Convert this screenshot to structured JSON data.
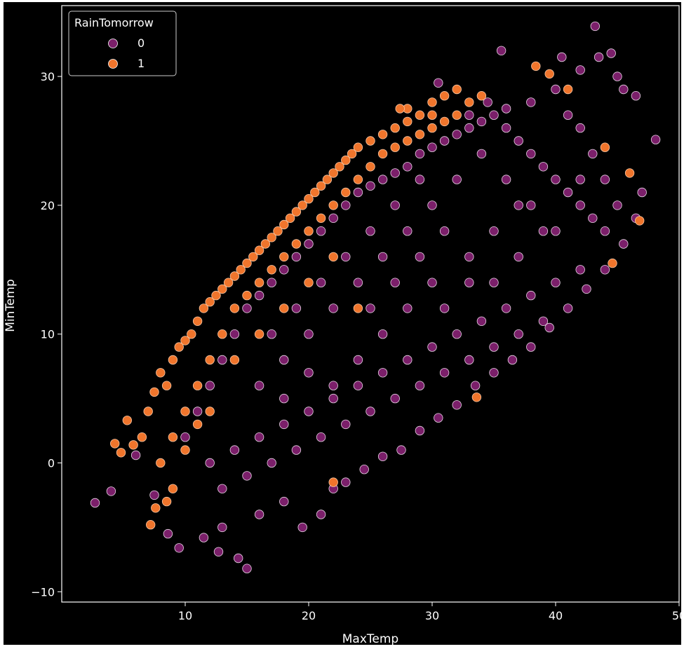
{
  "chart_data": {
    "type": "scatter",
    "xlabel": "MaxTemp",
    "ylabel": "MinTemp",
    "xlim": [
      0,
      50
    ],
    "ylim": [
      -10.8,
      35.5
    ],
    "xticks": [
      10,
      20,
      30,
      40,
      50
    ],
    "yticks": [
      -10,
      0,
      10,
      20,
      30
    ],
    "legend": {
      "title": "RainTomorrow",
      "position": "top-left",
      "entries": [
        {
          "label": "0",
          "color": "#7b1f6a"
        },
        {
          "label": "1",
          "color": "#f0752c"
        }
      ]
    },
    "series": [
      {
        "name": "0",
        "color": "#7b1f6a",
        "edge_color": "#e8d6e6",
        "points": [
          [
            2.7,
            -3.1
          ],
          [
            4.0,
            -2.2
          ],
          [
            6.0,
            0.6
          ],
          [
            7.5,
            -2.5
          ],
          [
            8.6,
            -5.5
          ],
          [
            9.5,
            -6.6
          ],
          [
            11.5,
            -5.8
          ],
          [
            12.7,
            -6.9
          ],
          [
            14.3,
            -7.4
          ],
          [
            15.0,
            -8.2
          ],
          [
            13.0,
            -5.0
          ],
          [
            16.0,
            -4.0
          ],
          [
            18.0,
            -3.0
          ],
          [
            19.5,
            -5.0
          ],
          [
            21.0,
            -4.0
          ],
          [
            22.0,
            -2.0
          ],
          [
            23.0,
            -1.5
          ],
          [
            24.5,
            -0.5
          ],
          [
            26.0,
            0.5
          ],
          [
            27.5,
            1.0
          ],
          [
            29.0,
            2.5
          ],
          [
            30.5,
            3.5
          ],
          [
            32.0,
            4.5
          ],
          [
            33.5,
            6.0
          ],
          [
            35.0,
            7.0
          ],
          [
            36.5,
            8.0
          ],
          [
            38.0,
            9.0
          ],
          [
            39.5,
            10.5
          ],
          [
            41.0,
            12.0
          ],
          [
            42.5,
            13.5
          ],
          [
            44.0,
            15.0
          ],
          [
            45.5,
            17.0
          ],
          [
            46.5,
            19.0
          ],
          [
            47.0,
            21.0
          ],
          [
            48.1,
            25.1
          ],
          [
            46.5,
            28.5
          ],
          [
            45.0,
            30.0
          ],
          [
            43.5,
            31.5
          ],
          [
            43.2,
            33.9
          ],
          [
            42.0,
            30.5
          ],
          [
            40.0,
            29.0
          ],
          [
            38.0,
            28.0
          ],
          [
            36.0,
            27.5
          ],
          [
            34.5,
            28.0
          ],
          [
            33.0,
            27.0
          ],
          [
            30.5,
            29.5
          ],
          [
            35.6,
            32.0
          ],
          [
            40.5,
            31.5
          ],
          [
            44.5,
            31.8
          ],
          [
            45.5,
            29.0
          ],
          [
            10.0,
            2.0
          ],
          [
            11.0,
            4.0
          ],
          [
            12.0,
            6.0
          ],
          [
            13.0,
            8.0
          ],
          [
            14.0,
            10.0
          ],
          [
            15.0,
            12.0
          ],
          [
            16.0,
            13.0
          ],
          [
            17.0,
            14.0
          ],
          [
            18.0,
            15.0
          ],
          [
            19.0,
            16.0
          ],
          [
            20.0,
            17.0
          ],
          [
            21.0,
            18.0
          ],
          [
            22.0,
            19.0
          ],
          [
            23.0,
            20.0
          ],
          [
            24.0,
            21.0
          ],
          [
            25.0,
            21.5
          ],
          [
            26.0,
            22.0
          ],
          [
            27.0,
            22.5
          ],
          [
            28.0,
            23.0
          ],
          [
            29.0,
            24.0
          ],
          [
            30.0,
            24.5
          ],
          [
            31.0,
            25.0
          ],
          [
            32.0,
            25.5
          ],
          [
            33.0,
            26.0
          ],
          [
            34.0,
            26.5
          ],
          [
            35.0,
            27.0
          ],
          [
            36.0,
            26.0
          ],
          [
            37.0,
            25.0
          ],
          [
            38.0,
            24.0
          ],
          [
            39.0,
            23.0
          ],
          [
            40.0,
            22.0
          ],
          [
            41.0,
            21.0
          ],
          [
            42.0,
            20.0
          ],
          [
            43.0,
            19.0
          ],
          [
            44.0,
            18.0
          ],
          [
            45.0,
            20.0
          ],
          [
            44.0,
            22.0
          ],
          [
            43.0,
            24.0
          ],
          [
            42.0,
            26.0
          ],
          [
            41.0,
            27.0
          ],
          [
            12.0,
            0.0
          ],
          [
            14.0,
            1.0
          ],
          [
            16.0,
            2.0
          ],
          [
            18.0,
            3.0
          ],
          [
            20.0,
            4.0
          ],
          [
            22.0,
            5.0
          ],
          [
            24.0,
            6.0
          ],
          [
            26.0,
            7.0
          ],
          [
            28.0,
            8.0
          ],
          [
            30.0,
            9.0
          ],
          [
            32.0,
            10.0
          ],
          [
            34.0,
            11.0
          ],
          [
            36.0,
            12.0
          ],
          [
            38.0,
            13.0
          ],
          [
            40.0,
            14.0
          ],
          [
            42.0,
            15.0
          ],
          [
            13.0,
            -2.0
          ],
          [
            15.0,
            -1.0
          ],
          [
            17.0,
            0.0
          ],
          [
            19.0,
            1.0
          ],
          [
            21.0,
            2.0
          ],
          [
            23.0,
            3.0
          ],
          [
            25.0,
            4.0
          ],
          [
            27.0,
            5.0
          ],
          [
            29.0,
            6.0
          ],
          [
            31.0,
            7.0
          ],
          [
            33.0,
            8.0
          ],
          [
            35.0,
            9.0
          ],
          [
            37.0,
            10.0
          ],
          [
            39.0,
            11.0
          ],
          [
            16.0,
            6.0
          ],
          [
            18.0,
            8.0
          ],
          [
            20.0,
            10.0
          ],
          [
            22.0,
            12.0
          ],
          [
            24.0,
            14.0
          ],
          [
            26.0,
            16.0
          ],
          [
            28.0,
            18.0
          ],
          [
            30.0,
            20.0
          ],
          [
            32.0,
            22.0
          ],
          [
            34.0,
            24.0
          ],
          [
            36.0,
            22.0
          ],
          [
            38.0,
            20.0
          ],
          [
            40.0,
            18.0
          ],
          [
            42.0,
            22.0
          ],
          [
            17.0,
            10.0
          ],
          [
            19.0,
            12.0
          ],
          [
            21.0,
            14.0
          ],
          [
            23.0,
            16.0
          ],
          [
            25.0,
            18.0
          ],
          [
            27.0,
            20.0
          ],
          [
            29.0,
            22.0
          ],
          [
            31.0,
            18.0
          ],
          [
            33.0,
            16.0
          ],
          [
            35.0,
            14.0
          ],
          [
            37.0,
            16.0
          ],
          [
            39.0,
            18.0
          ],
          [
            30.0,
            14.0
          ],
          [
            28.0,
            12.0
          ],
          [
            26.0,
            10.0
          ],
          [
            24.0,
            8.0
          ],
          [
            22.0,
            6.0
          ],
          [
            20.0,
            7.0
          ],
          [
            18.0,
            5.0
          ],
          [
            25.0,
            12.0
          ],
          [
            27.0,
            14.0
          ],
          [
            29.0,
            16.0
          ],
          [
            31.0,
            12.0
          ],
          [
            33.0,
            14.0
          ],
          [
            35.0,
            18.0
          ],
          [
            37.0,
            20.0
          ]
        ]
      },
      {
        "name": "1",
        "color": "#f0752c",
        "edge_color": "#f6c8a6",
        "points": [
          [
            4.3,
            1.5
          ],
          [
            4.8,
            0.8
          ],
          [
            5.3,
            3.3
          ],
          [
            5.8,
            1.4
          ],
          [
            6.5,
            2.0
          ],
          [
            7.0,
            4.0
          ],
          [
            7.5,
            5.5
          ],
          [
            8.0,
            7.0
          ],
          [
            8.5,
            6.0
          ],
          [
            7.2,
            -4.8
          ],
          [
            7.6,
            -3.5
          ],
          [
            9.0,
            8.0
          ],
          [
            9.5,
            9.0
          ],
          [
            10.0,
            9.5
          ],
          [
            10.5,
            10.0
          ],
          [
            11.0,
            11.0
          ],
          [
            11.5,
            12.0
          ],
          [
            12.0,
            12.5
          ],
          [
            12.5,
            13.0
          ],
          [
            13.0,
            13.5
          ],
          [
            13.5,
            14.0
          ],
          [
            14.0,
            14.5
          ],
          [
            14.5,
            15.0
          ],
          [
            15.0,
            15.5
          ],
          [
            15.5,
            16.0
          ],
          [
            16.0,
            16.5
          ],
          [
            16.5,
            17.0
          ],
          [
            17.0,
            17.5
          ],
          [
            17.5,
            18.0
          ],
          [
            18.0,
            18.5
          ],
          [
            18.5,
            19.0
          ],
          [
            19.0,
            19.5
          ],
          [
            19.5,
            20.0
          ],
          [
            20.0,
            20.5
          ],
          [
            20.5,
            21.0
          ],
          [
            21.0,
            21.5
          ],
          [
            21.5,
            22.0
          ],
          [
            22.0,
            22.5
          ],
          [
            22.5,
            23.0
          ],
          [
            23.0,
            23.5
          ],
          [
            23.5,
            24.0
          ],
          [
            24.0,
            24.5
          ],
          [
            25.0,
            25.0
          ],
          [
            26.0,
            25.5
          ],
          [
            27.0,
            26.0
          ],
          [
            28.0,
            26.5
          ],
          [
            29.0,
            27.0
          ],
          [
            30.0,
            28.0
          ],
          [
            31.0,
            28.5
          ],
          [
            32.0,
            29.0
          ],
          [
            28.0,
            27.5
          ],
          [
            27.4,
            27.5
          ],
          [
            30.0,
            27.0
          ],
          [
            33.0,
            28.0
          ],
          [
            34.0,
            28.5
          ],
          [
            38.4,
            30.8
          ],
          [
            39.5,
            30.2
          ],
          [
            41.0,
            29.0
          ],
          [
            44.0,
            24.5
          ],
          [
            46.0,
            22.5
          ],
          [
            46.8,
            18.8
          ],
          [
            44.6,
            15.5
          ],
          [
            33.6,
            5.1
          ],
          [
            22.0,
            -1.5
          ],
          [
            10.0,
            4.0
          ],
          [
            11.0,
            6.0
          ],
          [
            12.0,
            8.0
          ],
          [
            13.0,
            10.0
          ],
          [
            14.0,
            12.0
          ],
          [
            15.0,
            13.0
          ],
          [
            16.0,
            14.0
          ],
          [
            17.0,
            15.0
          ],
          [
            18.0,
            16.0
          ],
          [
            19.0,
            17.0
          ],
          [
            20.0,
            18.0
          ],
          [
            21.0,
            19.0
          ],
          [
            22.0,
            20.0
          ],
          [
            23.0,
            21.0
          ],
          [
            24.0,
            22.0
          ],
          [
            25.0,
            23.0
          ],
          [
            26.0,
            24.0
          ],
          [
            27.0,
            24.5
          ],
          [
            28.0,
            25.0
          ],
          [
            29.0,
            25.5
          ],
          [
            30.0,
            26.0
          ],
          [
            31.0,
            26.5
          ],
          [
            32.0,
            27.0
          ],
          [
            9.0,
            2.0
          ],
          [
            10.0,
            1.0
          ],
          [
            8.0,
            0.0
          ],
          [
            9.0,
            -2.0
          ],
          [
            8.5,
            -3.0
          ],
          [
            11.0,
            3.0
          ],
          [
            12.0,
            4.0
          ],
          [
            14.0,
            8.0
          ],
          [
            16.0,
            10.0
          ],
          [
            18.0,
            12.0
          ],
          [
            20.0,
            14.0
          ],
          [
            24.0,
            12.0
          ],
          [
            22.0,
            16.0
          ]
        ]
      }
    ]
  }
}
